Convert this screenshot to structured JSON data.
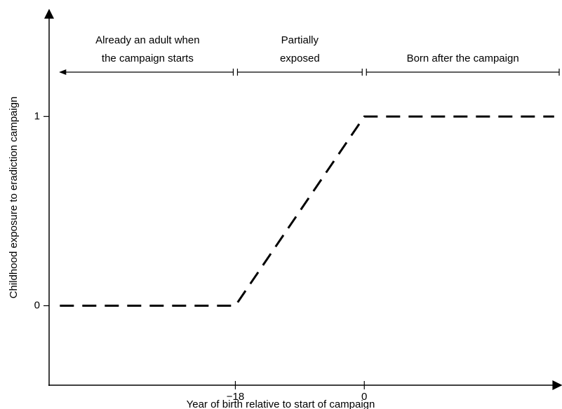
{
  "chart_data": {
    "type": "line",
    "x_label": "Year of birth relative to start of campaign",
    "y_label": "Childhood exposure to eradiction campaign",
    "x": [
      -42.5,
      -18,
      0,
      26.5
    ],
    "values": [
      0,
      0,
      1,
      1
    ],
    "color": "#000000",
    "dashed": true,
    "xlim": [
      -44,
      27.5
    ],
    "ylim": [
      -0.42,
      1.56
    ],
    "xticks": [
      {
        "value": -18,
        "label": "−18"
      },
      0
    ],
    "yticks": [
      0,
      1
    ],
    "regions": [
      {
        "lines": [
          "Already an adult when",
          "the campaign starts"
        ],
        "start": -42.5,
        "end": -18
      },
      {
        "lines": [
          "Partially",
          "exposed"
        ],
        "start": -18,
        "end": 0
      },
      {
        "lines": [
          "Born after the campaign"
        ],
        "start": 0,
        "end": 27.5
      }
    ]
  }
}
